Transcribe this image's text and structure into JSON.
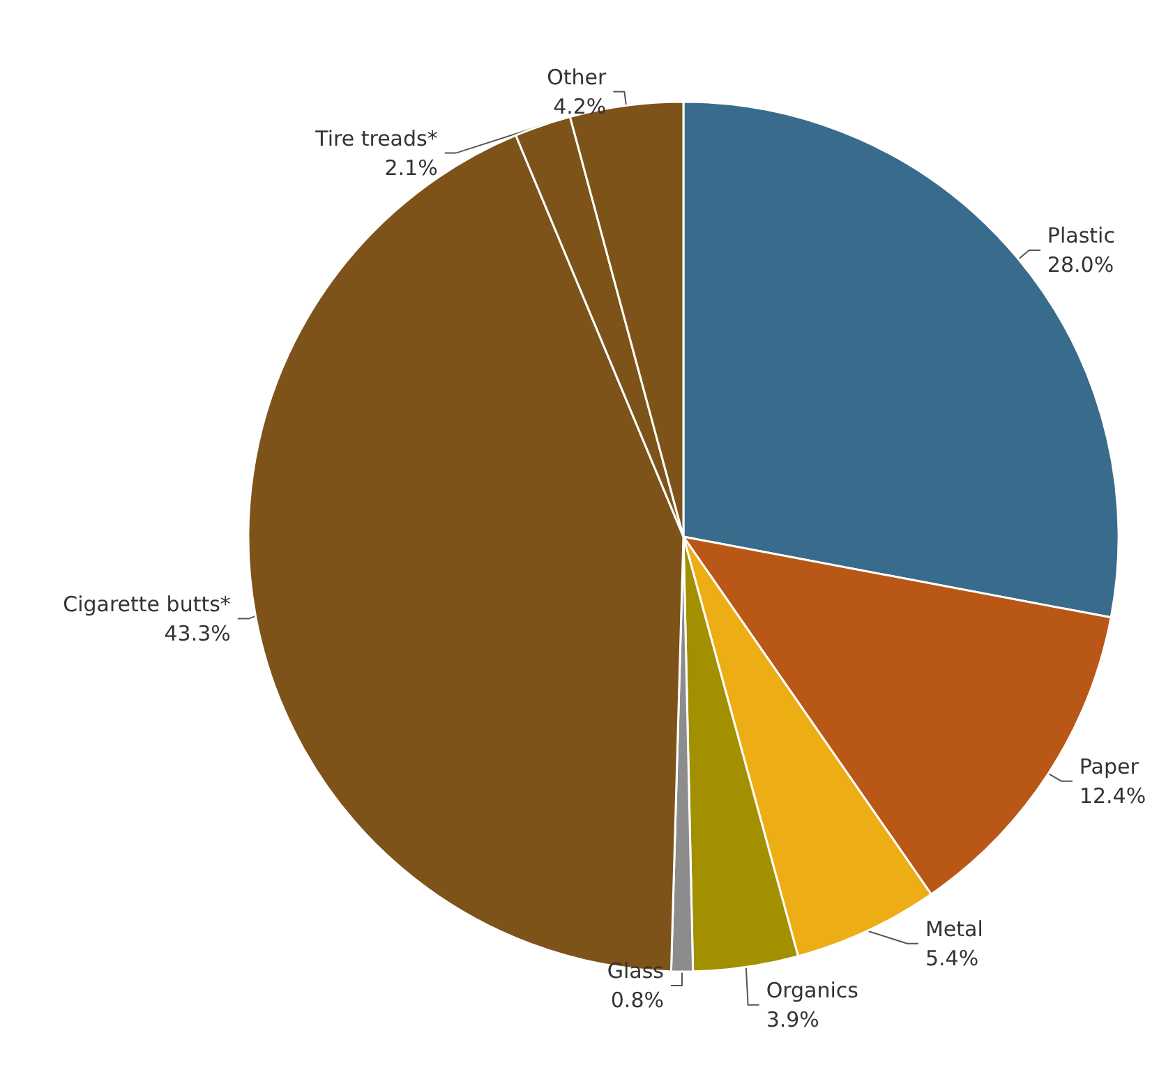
{
  "chart_data": {
    "type": "pie",
    "categories": [
      "Plastic",
      "Paper",
      "Metal",
      "Organics",
      "Glass",
      "Cigarette butts*",
      "Tire treads*",
      "Other"
    ],
    "values": [
      28.0,
      12.4,
      5.4,
      3.9,
      0.8,
      43.3,
      2.1,
      4.2
    ],
    "value_labels": [
      "28.0%",
      "12.4%",
      "5.4%",
      "3.9%",
      "0.8%",
      "43.3%",
      "2.1%",
      "4.2%"
    ],
    "colors": [
      "#386b8c",
      "#b85716",
      "#ecae14",
      "#a39000",
      "#8c8c8c",
      "#7d5319",
      "#7d5319",
      "#7d5319"
    ],
    "legend": false
  }
}
